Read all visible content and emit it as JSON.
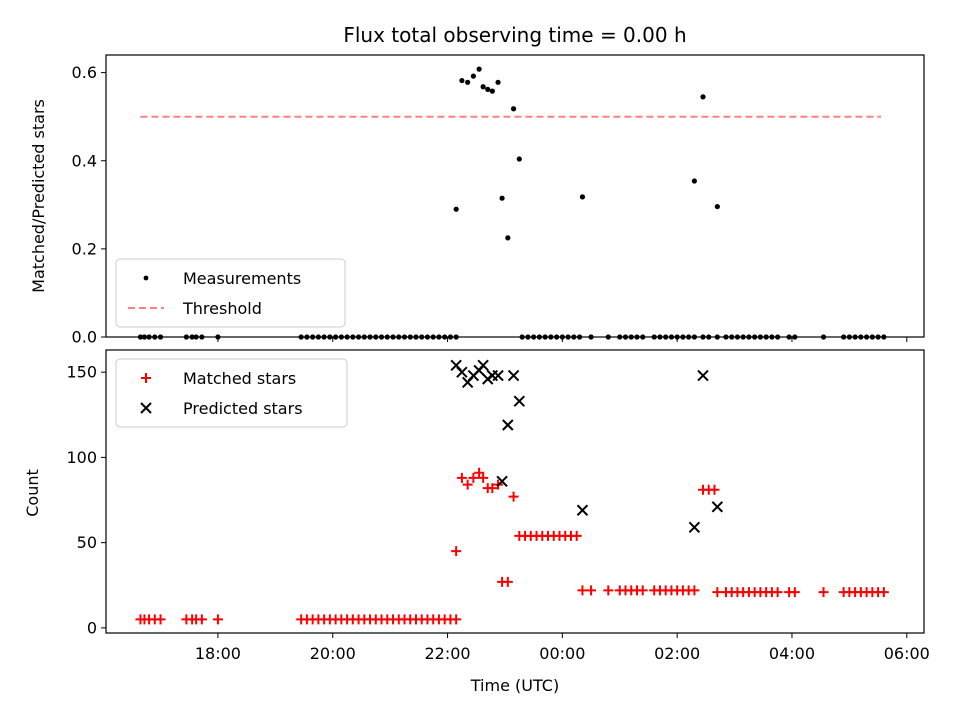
{
  "chart_data": [
    {
      "type": "scatter",
      "title": "Flux total observing time = 0.00 h",
      "ylabel": "Matched/Predicted stars",
      "xlabel": "",
      "ylim": [
        0,
        0.64
      ],
      "yticks": [
        "0.0",
        "0.2",
        "0.4",
        "0.6"
      ],
      "ytick_values": [
        0,
        0.2,
        0.4,
        0.6
      ],
      "xlim": [
        16.05,
        30.3
      ],
      "legend_position": "lower-left",
      "threshold": {
        "name": "Threshold",
        "value": 0.5,
        "x_range": [
          16.65,
          29.55
        ],
        "color": "#ff8080",
        "style": "dashed"
      },
      "series": [
        {
          "name": "Measurements",
          "color": "#000000",
          "marker": "dot",
          "points": [
            [
              22.15,
              0.29
            ],
            [
              22.25,
              0.582
            ],
            [
              22.35,
              0.578
            ],
            [
              22.45,
              0.592
            ],
            [
              22.55,
              0.608
            ],
            [
              22.62,
              0.568
            ],
            [
              22.7,
              0.562
            ],
            [
              22.78,
              0.558
            ],
            [
              22.88,
              0.578
            ],
            [
              22.95,
              0.315
            ],
            [
              23.05,
              0.225
            ],
            [
              23.15,
              0.518
            ],
            [
              23.25,
              0.404
            ],
            [
              24.35,
              0.318
            ],
            [
              26.3,
              0.354
            ],
            [
              26.45,
              0.545
            ],
            [
              26.7,
              0.296
            ],
            [
              16.65,
              0
            ],
            [
              16.72,
              0
            ],
            [
              16.8,
              0
            ],
            [
              16.9,
              0
            ],
            [
              17.0,
              0
            ],
            [
              17.45,
              0
            ],
            [
              17.55,
              0
            ],
            [
              17.62,
              0
            ],
            [
              17.72,
              0
            ],
            [
              18.0,
              0
            ],
            [
              19.45,
              0
            ],
            [
              19.55,
              0
            ],
            [
              19.65,
              0
            ],
            [
              19.75,
              0
            ],
            [
              19.85,
              0
            ],
            [
              19.95,
              0
            ],
            [
              20.05,
              0
            ],
            [
              20.15,
              0
            ],
            [
              20.25,
              0
            ],
            [
              20.35,
              0
            ],
            [
              20.45,
              0
            ],
            [
              20.55,
              0
            ],
            [
              20.65,
              0
            ],
            [
              20.75,
              0
            ],
            [
              20.85,
              0
            ],
            [
              20.95,
              0
            ],
            [
              21.05,
              0
            ],
            [
              21.15,
              0
            ],
            [
              21.25,
              0
            ],
            [
              21.35,
              0
            ],
            [
              21.45,
              0
            ],
            [
              21.55,
              0
            ],
            [
              21.65,
              0
            ],
            [
              21.75,
              0
            ],
            [
              21.85,
              0
            ],
            [
              21.95,
              0
            ],
            [
              22.05,
              0
            ],
            [
              22.15,
              0
            ],
            [
              23.3,
              0
            ],
            [
              23.4,
              0
            ],
            [
              23.5,
              0
            ],
            [
              23.6,
              0
            ],
            [
              23.7,
              0
            ],
            [
              23.8,
              0
            ],
            [
              23.9,
              0
            ],
            [
              24.0,
              0
            ],
            [
              24.1,
              0
            ],
            [
              24.2,
              0
            ],
            [
              24.3,
              0
            ],
            [
              24.5,
              0
            ],
            [
              24.8,
              0
            ],
            [
              25.0,
              0
            ],
            [
              25.1,
              0
            ],
            [
              25.2,
              0
            ],
            [
              25.3,
              0
            ],
            [
              25.4,
              0
            ],
            [
              25.6,
              0
            ],
            [
              25.7,
              0
            ],
            [
              25.8,
              0
            ],
            [
              25.9,
              0
            ],
            [
              26.0,
              0
            ],
            [
              26.1,
              0
            ],
            [
              26.2,
              0
            ],
            [
              26.3,
              0
            ],
            [
              26.45,
              0
            ],
            [
              26.55,
              0
            ],
            [
              26.7,
              0
            ],
            [
              26.85,
              0
            ],
            [
              26.95,
              0
            ],
            [
              27.05,
              0
            ],
            [
              27.15,
              0
            ],
            [
              27.25,
              0
            ],
            [
              27.35,
              0
            ],
            [
              27.45,
              0
            ],
            [
              27.55,
              0
            ],
            [
              27.65,
              0
            ],
            [
              27.75,
              0
            ],
            [
              27.95,
              0
            ],
            [
              28.05,
              0
            ],
            [
              28.55,
              0
            ],
            [
              28.9,
              0
            ],
            [
              29.0,
              0
            ],
            [
              29.1,
              0
            ],
            [
              29.2,
              0
            ],
            [
              29.3,
              0
            ],
            [
              29.4,
              0
            ],
            [
              29.5,
              0
            ],
            [
              29.6,
              0
            ]
          ]
        }
      ]
    },
    {
      "type": "scatter",
      "title": "",
      "ylabel": "Count",
      "xlabel": "Time (UTC)",
      "ylim": [
        -3,
        163
      ],
      "yticks": [
        "0",
        "50",
        "100",
        "150"
      ],
      "ytick_values": [
        0,
        50,
        100,
        150
      ],
      "xlim": [
        16.05,
        30.3
      ],
      "xticks": [
        "18:00",
        "20:00",
        "22:00",
        "00:00",
        "02:00",
        "04:00",
        "06:00"
      ],
      "xtick_values": [
        18,
        20,
        22,
        24,
        26,
        28,
        30
      ],
      "legend_position": "top-left",
      "series": [
        {
          "name": "Matched stars",
          "color": "#ff0000",
          "marker": "plus",
          "points": [
            [
              16.65,
              5
            ],
            [
              16.72,
              5
            ],
            [
              16.8,
              5
            ],
            [
              16.9,
              5
            ],
            [
              17.0,
              5
            ],
            [
              17.45,
              5
            ],
            [
              17.55,
              5
            ],
            [
              17.62,
              5
            ],
            [
              17.72,
              5
            ],
            [
              18.0,
              5
            ],
            [
              19.45,
              5
            ],
            [
              19.55,
              5
            ],
            [
              19.65,
              5
            ],
            [
              19.75,
              5
            ],
            [
              19.85,
              5
            ],
            [
              19.95,
              5
            ],
            [
              20.05,
              5
            ],
            [
              20.15,
              5
            ],
            [
              20.25,
              5
            ],
            [
              20.35,
              5
            ],
            [
              20.45,
              5
            ],
            [
              20.55,
              5
            ],
            [
              20.65,
              5
            ],
            [
              20.75,
              5
            ],
            [
              20.85,
              5
            ],
            [
              20.95,
              5
            ],
            [
              21.05,
              5
            ],
            [
              21.15,
              5
            ],
            [
              21.25,
              5
            ],
            [
              21.35,
              5
            ],
            [
              21.45,
              5
            ],
            [
              21.55,
              5
            ],
            [
              21.65,
              5
            ],
            [
              21.75,
              5
            ],
            [
              21.85,
              5
            ],
            [
              21.95,
              5
            ],
            [
              22.05,
              5
            ],
            [
              22.15,
              5
            ],
            [
              22.15,
              45
            ],
            [
              22.25,
              88
            ],
            [
              22.35,
              84
            ],
            [
              22.45,
              88
            ],
            [
              22.55,
              91
            ],
            [
              22.62,
              88
            ],
            [
              22.7,
              82
            ],
            [
              22.78,
              82
            ],
            [
              22.88,
              84
            ],
            [
              22.95,
              27
            ],
            [
              23.05,
              27
            ],
            [
              23.15,
              77
            ],
            [
              23.25,
              54
            ],
            [
              23.35,
              54
            ],
            [
              23.45,
              54
            ],
            [
              23.55,
              54
            ],
            [
              23.65,
              54
            ],
            [
              23.75,
              54
            ],
            [
              23.85,
              54
            ],
            [
              23.95,
              54
            ],
            [
              24.05,
              54
            ],
            [
              24.15,
              54
            ],
            [
              24.25,
              54
            ],
            [
              24.35,
              22
            ],
            [
              24.5,
              22
            ],
            [
              24.8,
              22
            ],
            [
              25.0,
              22
            ],
            [
              25.1,
              22
            ],
            [
              25.2,
              22
            ],
            [
              25.3,
              22
            ],
            [
              25.4,
              22
            ],
            [
              25.6,
              22
            ],
            [
              25.7,
              22
            ],
            [
              25.8,
              22
            ],
            [
              25.9,
              22
            ],
            [
              26.0,
              22
            ],
            [
              26.1,
              22
            ],
            [
              26.2,
              22
            ],
            [
              26.3,
              22
            ],
            [
              26.45,
              81
            ],
            [
              26.55,
              81
            ],
            [
              26.65,
              81
            ],
            [
              26.7,
              21
            ],
            [
              26.85,
              21
            ],
            [
              26.95,
              21
            ],
            [
              27.05,
              21
            ],
            [
              27.15,
              21
            ],
            [
              27.25,
              21
            ],
            [
              27.35,
              21
            ],
            [
              27.45,
              21
            ],
            [
              27.55,
              21
            ],
            [
              27.65,
              21
            ],
            [
              27.75,
              21
            ],
            [
              27.95,
              21
            ],
            [
              28.05,
              21
            ],
            [
              28.55,
              21
            ],
            [
              28.9,
              21
            ],
            [
              29.0,
              21
            ],
            [
              29.1,
              21
            ],
            [
              29.2,
              21
            ],
            [
              29.3,
              21
            ],
            [
              29.4,
              21
            ],
            [
              29.5,
              21
            ],
            [
              29.6,
              21
            ]
          ]
        },
        {
          "name": "Predicted stars",
          "color": "#000000",
          "marker": "x",
          "points": [
            [
              22.15,
              154
            ],
            [
              22.25,
              150
            ],
            [
              22.35,
              144
            ],
            [
              22.45,
              148
            ],
            [
              22.55,
              151
            ],
            [
              22.62,
              154
            ],
            [
              22.7,
              146
            ],
            [
              22.78,
              148
            ],
            [
              22.88,
              148
            ],
            [
              22.95,
              86
            ],
            [
              23.05,
              119
            ],
            [
              23.15,
              148
            ],
            [
              23.25,
              133
            ],
            [
              24.35,
              69
            ],
            [
              26.3,
              59
            ],
            [
              26.45,
              148
            ],
            [
              26.7,
              71
            ]
          ]
        }
      ]
    }
  ]
}
